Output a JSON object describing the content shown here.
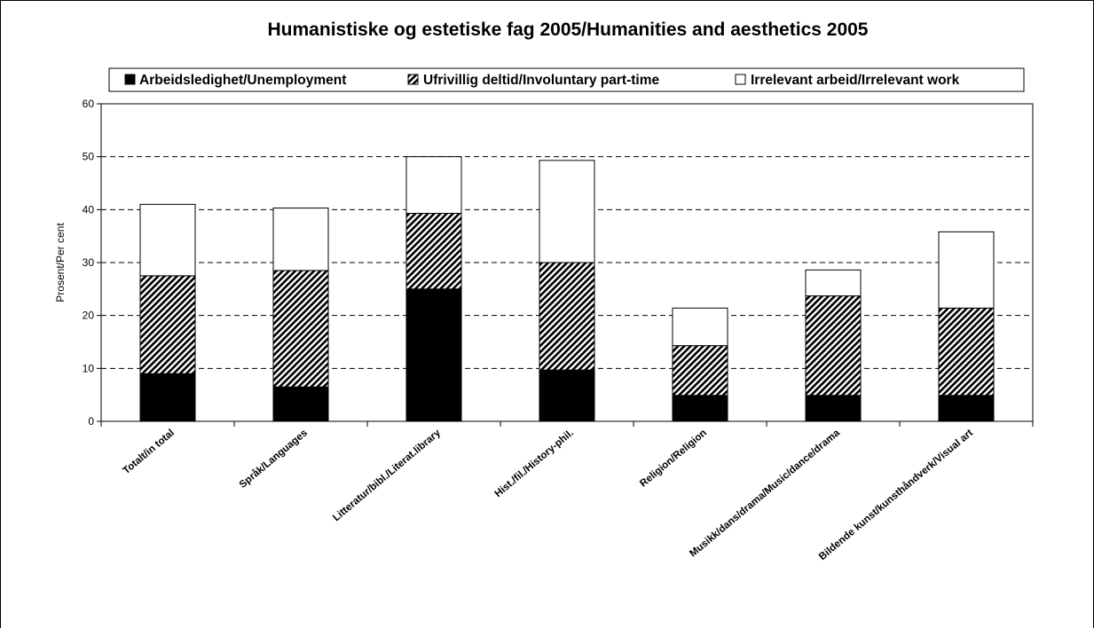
{
  "chart_data": {
    "type": "bar",
    "stacked": true,
    "title": "Humanistiske og estetiske fag 2005/Humanities and aesthetics 2005",
    "ylabel": "Prosent/Per cent",
    "xlabel": "",
    "ylim": [
      0,
      60
    ],
    "yticks": [
      0,
      10,
      20,
      30,
      40,
      50,
      60
    ],
    "grid": "horizontal dashed",
    "legend_position": "top",
    "categories": [
      "Totalt/in total",
      "Språk/Languages",
      "Litteratur/bibl./Literat.library",
      "Hist./fil./History-phil.",
      "Religion/Religion",
      "Musikk/dans/drama/Music/dance/drama",
      "Bildende kunst/kunsthåndverk/Visual art"
    ],
    "series": [
      {
        "name": "Arbeidsledighet/Unemployment",
        "values": [
          9,
          6.5,
          25,
          9.7,
          4.9,
          4.9,
          4.9
        ],
        "fill": "solid",
        "color": "#000000"
      },
      {
        "name": "Ufrivillig deltid/Involuntary part-time",
        "values": [
          18.5,
          22,
          14.3,
          20.3,
          9.4,
          18.8,
          16.5
        ],
        "fill": "hatched",
        "color": "#000000"
      },
      {
        "name": "Irrelevant arbeid/Irrelevant work",
        "values": [
          13.5,
          11.8,
          10.7,
          19.3,
          7.1,
          4.9,
          14.4
        ],
        "fill": "none",
        "color": "#ffffff"
      }
    ]
  }
}
